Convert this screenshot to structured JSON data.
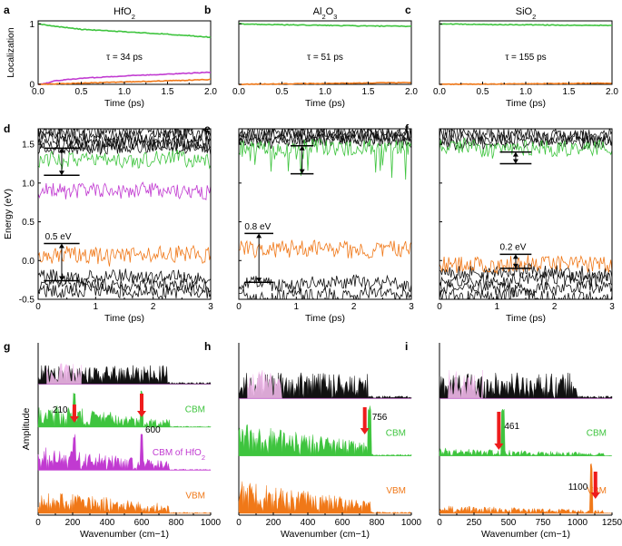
{
  "figure": {
    "panels": [
      "a",
      "b",
      "c",
      "d",
      "e",
      "f",
      "g",
      "h",
      "i"
    ],
    "titles": [
      "HfO2",
      "Al2O3",
      "SiO2"
    ],
    "colors": {
      "green": "#3ec43e",
      "purple": "#c13ad1",
      "orange": "#f07818",
      "black": "#111111",
      "pink": "#f0b8ea",
      "red": "#ee1c1c"
    }
  },
  "chart_data": [
    {
      "panel": "a",
      "type": "line",
      "title": "HfO2",
      "xlabel": "Time (ps)",
      "ylabel": "Localization",
      "xlim": [
        0,
        2
      ],
      "ylim": [
        0,
        1.05
      ],
      "xticks": [
        "0.0",
        "0.5",
        "1.0",
        "1.5",
        "2.0"
      ],
      "yticks": [
        "0",
        "1"
      ],
      "annotation": "τ = 34 ps",
      "series": [
        {
          "color": "green",
          "x": [
            0,
            0.1,
            0.2,
            0.5,
            1.0,
            1.5,
            2.0
          ],
          "y": [
            1.0,
            0.98,
            0.96,
            0.91,
            0.87,
            0.83,
            0.78
          ]
        },
        {
          "color": "purple",
          "x": [
            0,
            0.1,
            0.2,
            0.5,
            1.0,
            1.5,
            2.0
          ],
          "y": [
            0.0,
            0.02,
            0.06,
            0.1,
            0.14,
            0.17,
            0.2
          ]
        },
        {
          "color": "orange",
          "x": [
            0,
            0.5,
            1.0,
            1.5,
            2.0
          ],
          "y": [
            0.0,
            0.02,
            0.04,
            0.06,
            0.08
          ]
        }
      ]
    },
    {
      "panel": "b",
      "type": "line",
      "title": "Al2O3",
      "xlabel": "Time (ps)",
      "xlim": [
        0,
        2
      ],
      "ylim": [
        0,
        1.05
      ],
      "xticks": [
        "0.0",
        "0.5",
        "1.0",
        "1.5",
        "2.0"
      ],
      "annotation": "τ = 51 ps",
      "series": [
        {
          "color": "green",
          "x": [
            0,
            0.5,
            1.0,
            1.5,
            2.0
          ],
          "y": [
            1.0,
            0.985,
            0.975,
            0.965,
            0.96
          ]
        },
        {
          "color": "orange",
          "x": [
            0,
            2.0
          ],
          "y": [
            0.0,
            0.03
          ]
        }
      ]
    },
    {
      "panel": "c",
      "type": "line",
      "title": "SiO2",
      "xlabel": "Time (ps)",
      "xlim": [
        0,
        2
      ],
      "ylim": [
        0,
        1.05
      ],
      "xticks": [
        "0.0",
        "0.5",
        "1.0",
        "1.5",
        "2.0"
      ],
      "annotation": "τ = 155 ps",
      "series": [
        {
          "color": "green",
          "x": [
            0,
            0.5,
            1.0,
            1.5,
            2.0
          ],
          "y": [
            1.0,
            0.99,
            0.985,
            0.98,
            0.975
          ]
        },
        {
          "color": "orange",
          "x": [
            0,
            2.0
          ],
          "y": [
            0.0,
            0.02
          ]
        }
      ]
    },
    {
      "panel": "d",
      "type": "line",
      "xlabel": "Time (ps)",
      "ylabel": "Energy (eV)",
      "xlim": [
        0,
        3
      ],
      "ylim": [
        -0.5,
        1.7
      ],
      "xticks": [
        "0",
        "1",
        "2",
        "3"
      ],
      "yticks": [
        "-0.5",
        "0.0",
        "0.5",
        "1.0",
        "1.5"
      ],
      "annotation": "0.5 eV",
      "series": [
        {
          "color": "black",
          "levels": [
            1.66,
            1.6,
            1.55,
            1.5,
            1.45,
            -0.2,
            -0.3,
            -0.4
          ]
        },
        {
          "color": "green",
          "levels": [
            1.3
          ]
        },
        {
          "color": "purple",
          "levels": [
            0.9
          ]
        },
        {
          "color": "orange",
          "levels": [
            0.05
          ]
        }
      ]
    },
    {
      "panel": "e",
      "type": "line",
      "xlabel": "Time (ps)",
      "xlim": [
        0,
        3
      ],
      "ylim": [
        -0.5,
        1.7
      ],
      "xticks": [
        "0",
        "1",
        "2",
        "3"
      ],
      "annotation": "0.8 eV",
      "series": [
        {
          "color": "black",
          "levels": [
            1.66,
            1.62,
            1.58,
            1.54,
            -0.3,
            -0.45
          ]
        },
        {
          "color": "green",
          "levels": [
            1.45
          ]
        },
        {
          "color": "orange",
          "levels": [
            0.15
          ]
        }
      ]
    },
    {
      "panel": "f",
      "type": "line",
      "xlabel": "Time (ps)",
      "xlim": [
        0,
        3
      ],
      "ylim": [
        -0.5,
        1.7
      ],
      "xticks": [
        "0",
        "1",
        "2",
        "3"
      ],
      "annotation": "0.2 eV",
      "series": [
        {
          "color": "black",
          "levels": [
            1.64,
            1.58,
            1.52,
            -0.15,
            -0.25,
            -0.35,
            -0.45
          ]
        },
        {
          "color": "green",
          "levels": [
            1.46
          ]
        },
        {
          "color": "orange",
          "levels": [
            -0.05
          ]
        }
      ]
    },
    {
      "panel": "g",
      "type": "area",
      "xlabel": "Wavenumber (cm−1)",
      "ylabel": "Amplitude",
      "xlim": [
        0,
        1000
      ],
      "xticks": [
        "0",
        "200",
        "400",
        "600",
        "800",
        "1000"
      ],
      "series": [
        {
          "color": "black",
          "label": ""
        },
        {
          "color": "green",
          "label": "CBM",
          "peaks": [
            210,
            600
          ]
        },
        {
          "color": "purple",
          "label": "CBM of HfO2",
          "peaks": [
            210,
            600
          ]
        },
        {
          "color": "orange",
          "label": "VBM"
        }
      ],
      "markers": [
        "210",
        "600"
      ]
    },
    {
      "panel": "h",
      "type": "area",
      "xlabel": "Wavenumber (cm−1)",
      "xlim": [
        0,
        1000
      ],
      "xticks": [
        "0",
        "200",
        "400",
        "600",
        "800",
        "1000"
      ],
      "series": [
        {
          "color": "black",
          "label": ""
        },
        {
          "color": "green",
          "label": "CBM",
          "peaks": [
            756
          ]
        },
        {
          "color": "orange",
          "label": "VBM"
        }
      ],
      "markers": [
        "756"
      ]
    },
    {
      "panel": "i",
      "type": "area",
      "xlabel": "Wavenumber (cm−1)",
      "xlim": [
        0,
        1250
      ],
      "xticks": [
        "0",
        "250",
        "500",
        "750",
        "1000",
        "1250"
      ],
      "series": [
        {
          "color": "black",
          "label": ""
        },
        {
          "color": "green",
          "label": "CBM",
          "peaks": [
            461
          ]
        },
        {
          "color": "orange",
          "label": "VBM",
          "peaks": [
            1100
          ]
        }
      ],
      "markers": [
        "461",
        "1100"
      ]
    }
  ]
}
